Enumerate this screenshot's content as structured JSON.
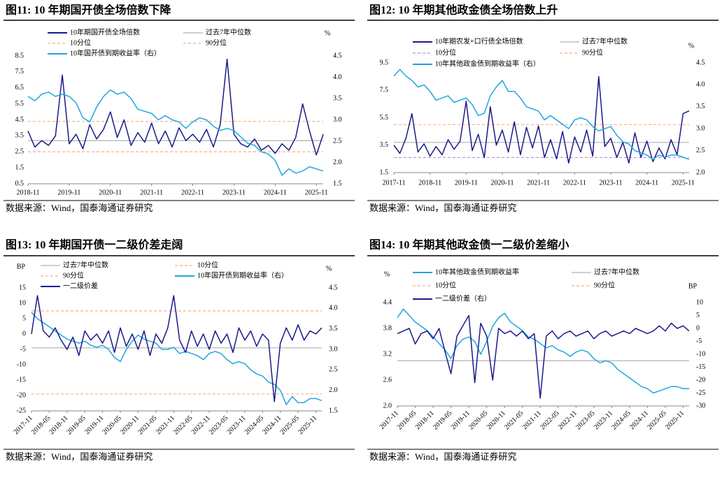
{
  "chart_data": [
    {
      "type": "line",
      "title": "图11:  10 年期国开债全场倍数下降",
      "source": "数据来源：Wind，国泰海通证券研究",
      "y2_unit": "%",
      "categories": [
        "2018-11",
        null,
        null,
        null,
        null,
        null,
        "2019-11",
        null,
        null,
        null,
        null,
        null,
        "2020-11",
        null,
        null,
        null,
        null,
        null,
        "2021-11",
        null,
        null,
        null,
        null,
        null,
        "2022-11",
        null,
        null,
        null,
        null,
        null,
        "2023-11",
        null,
        null,
        null,
        null,
        null,
        "2024-11",
        null,
        null,
        null,
        null,
        null,
        "2025-11",
        null
      ],
      "ylim": [
        0.5,
        8.5
      ],
      "yticks": [
        0.5,
        1.5,
        2.5,
        3.5,
        4.5,
        5.5,
        6.5,
        7.5,
        8.5
      ],
      "y2lim": [
        1.5,
        4.5
      ],
      "y2ticks": [
        1.5,
        {
          "value": 2,
          "label": "2.0"
        },
        2.5,
        {
          "value": 3,
          "label": "3.0"
        },
        3.5,
        {
          "value": 4,
          "label": "4.0"
        },
        4.5
      ],
      "series": [
        {
          "name": "10年期国开债全场倍数",
          "color": "#1b1b8a",
          "values": [
            3.8,
            2.8,
            3.2,
            2.9,
            3.5,
            7.3,
            3.0,
            3.6,
            2.7,
            4.2,
            3.3,
            3.9,
            5.0,
            3.4,
            4.5,
            2.9,
            3.7,
            3.1,
            4.3,
            3.0,
            3.8,
            2.8,
            4.0,
            3.2,
            3.6,
            3.1,
            3.9,
            2.8,
            4.2,
            8.3,
            3.6,
            3.0,
            2.8,
            3.3,
            2.6,
            2.9,
            2.4,
            3.0,
            2.6,
            3.4,
            5.5,
            3.8,
            2.3,
            3.6
          ]
        },
        {
          "name": "过去7年中位数",
          "color": "#b0b0b0",
          "level": 3.2
        },
        {
          "name": "10分位",
          "color": "#f4b183",
          "level": 2.5,
          "style": "dashed"
        },
        {
          "name": "90分位",
          "color": "#f4b183",
          "level": 4.4,
          "style": "dashed"
        },
        {
          "name": "10年国开债到期收益率（右）",
          "color": "#21a5e0",
          "axis": "y2",
          "values": [
            3.55,
            3.45,
            3.6,
            3.65,
            3.55,
            3.6,
            3.55,
            3.4,
            3.05,
            2.95,
            3.3,
            3.55,
            3.7,
            3.6,
            3.65,
            3.5,
            3.25,
            3.2,
            3.15,
            3.0,
            3.1,
            3.0,
            2.95,
            2.8,
            2.95,
            3.05,
            3.0,
            2.85,
            2.75,
            2.8,
            2.75,
            2.6,
            2.45,
            2.4,
            2.25,
            2.2,
            2.05,
            1.7,
            1.85,
            1.75,
            1.8,
            1.9,
            1.85,
            1.8
          ]
        }
      ]
    },
    {
      "type": "line",
      "title": "图12:  10 年期其他政金债全场倍数上升",
      "source": "数据来源：Wind，国泰海通证券研究",
      "y2_unit": "%",
      "categories": [
        "2017-11",
        null,
        null,
        null,
        null,
        null,
        "2018-11",
        null,
        null,
        null,
        null,
        null,
        "2019-11",
        null,
        null,
        null,
        null,
        null,
        "2020-11",
        null,
        null,
        null,
        null,
        null,
        "2021-11",
        null,
        null,
        null,
        null,
        null,
        "2022-11",
        null,
        null,
        null,
        null,
        null,
        "2023-11",
        null,
        null,
        null,
        null,
        null,
        "2024-11",
        null,
        null,
        null,
        null,
        null,
        "2025-11",
        null
      ],
      "ylim": [
        1.5,
        9.5
      ],
      "yticks": [
        1.5,
        3.5,
        5.5,
        7.5,
        9.5
      ],
      "y2lim": [
        2,
        4.5
      ],
      "y2ticks": [
        {
          "value": 2,
          "label": "2.0"
        },
        2.5,
        {
          "value": 3,
          "label": "3.0"
        },
        3.5,
        {
          "value": 4,
          "label": "4.0"
        },
        4.5
      ],
      "series": [
        {
          "name": "10年期农发+口行债全场倍数",
          "color": "#1b1b8a",
          "values": [
            3.5,
            2.9,
            4.0,
            5.8,
            3.0,
            3.6,
            2.7,
            3.4,
            2.8,
            3.9,
            3.2,
            3.8,
            6.7,
            3.1,
            4.3,
            2.6,
            6.3,
            3.5,
            4.6,
            3.0,
            5.2,
            2.8,
            4.8,
            3.3,
            4.9,
            2.6,
            3.9,
            2.5,
            4.5,
            2.2,
            4.1,
            3.0,
            4.6,
            2.7,
            8.5,
            3.4,
            4.0,
            2.6,
            3.7,
            2.2,
            4.4,
            2.6,
            3.8,
            2.3,
            3.3,
            2.5,
            3.9,
            2.8,
            5.8,
            6.0
          ]
        },
        {
          "name": "过去7年中位数",
          "color": "#b0b0b0",
          "level": 3.7
        },
        {
          "name": "10分位",
          "color": "#b38fd6",
          "level": 2.6,
          "style": "dashed"
        },
        {
          "name": "90分位",
          "color": "#f4b183",
          "level": 5.0,
          "style": "dashed"
        },
        {
          "name": "10年其他政金债到期收益率（右）",
          "color": "#21a5e0",
          "axis": "y2",
          "values": [
            4.2,
            4.35,
            4.2,
            4.1,
            3.95,
            4.0,
            3.85,
            3.65,
            3.7,
            3.75,
            3.6,
            3.65,
            3.7,
            3.55,
            3.3,
            3.35,
            3.75,
            3.95,
            4.1,
            3.85,
            3.85,
            3.7,
            3.5,
            3.45,
            3.4,
            3.2,
            3.3,
            3.2,
            3.1,
            3.0,
            3.2,
            3.25,
            3.2,
            3.05,
            2.95,
            3.0,
            3.05,
            2.85,
            2.7,
            2.65,
            2.5,
            2.45,
            2.4,
            2.3,
            2.4,
            2.35,
            2.4,
            2.4,
            2.35,
            2.3
          ]
        }
      ]
    },
    {
      "type": "line",
      "title": "图13:  10 年期国开债一二级价差走阔",
      "source": "数据来源：Wind，国泰海通证券研究",
      "y_unit": "BP",
      "y2_unit": "%",
      "categories": [
        "2017-11",
        null,
        null,
        "2018-05",
        null,
        null,
        "2018-11",
        null,
        null,
        "2019-05",
        null,
        null,
        "2019-11",
        null,
        null,
        "2020-05",
        null,
        null,
        "2020-11",
        null,
        null,
        "2021-05",
        null,
        null,
        "2021-11",
        null,
        null,
        "2022-05",
        null,
        null,
        "2022-11",
        null,
        null,
        "2023-05",
        null,
        null,
        "2023-11",
        null,
        null,
        "2024-05",
        null,
        null,
        "2024-11",
        null,
        null,
        "2025-05",
        null,
        null,
        "2025-11",
        null
      ],
      "ylim": [
        -25,
        15
      ],
      "yticks": [
        -25,
        -20,
        -15,
        -10,
        -5,
        0,
        5,
        10,
        15
      ],
      "y2lim": [
        1.5,
        4.5
      ],
      "y2ticks": [
        1.5,
        {
          "value": 2,
          "label": "2.0"
        },
        2.5,
        {
          "value": 3,
          "label": "3.0"
        },
        3.5,
        {
          "value": 4,
          "label": "4.0"
        },
        4.5
      ],
      "series": [
        {
          "name": "过去7年中位数",
          "color": "#b0b0b0",
          "level": -4.5
        },
        {
          "name": "10分位",
          "color": "#f4b183",
          "level": -19.5,
          "style": "dashed"
        },
        {
          "name": "90分位",
          "color": "#f4b183",
          "level": 7.5,
          "style": "dashed"
        },
        {
          "name": "10年国开债到期收益率（右）",
          "color": "#21a5e0",
          "axis": "y2",
          "values": [
            3.9,
            3.75,
            3.65,
            3.55,
            3.45,
            3.35,
            3.25,
            3.2,
            3.15,
            3.2,
            3.1,
            3.05,
            3.1,
            3.0,
            2.8,
            2.7,
            3.0,
            3.2,
            3.35,
            3.25,
            3.2,
            3.15,
            3.0,
            3.0,
            3.05,
            2.9,
            2.95,
            2.9,
            2.85,
            2.75,
            2.9,
            2.95,
            2.9,
            2.75,
            2.65,
            2.7,
            2.65,
            2.5,
            2.4,
            2.35,
            2.2,
            2.15,
            2.0,
            1.65,
            1.85,
            1.7,
            1.7,
            1.8,
            1.8,
            1.75
          ]
        },
        {
          "name": "一二级价差",
          "color": "#1b1b8a",
          "values": [
            0,
            12.5,
            1,
            -1,
            2,
            -2,
            -5,
            -1,
            -7,
            1,
            -2,
            0,
            -3,
            1,
            -6,
            2,
            -4,
            0,
            -5,
            1,
            -7,
            0,
            -3,
            2,
            12.5,
            -2,
            -6,
            1,
            -4,
            0,
            -5,
            1,
            -3,
            0,
            -6,
            2,
            -2,
            1,
            -4,
            0,
            -2,
            -22,
            -3,
            2,
            -2,
            3,
            -2,
            1,
            0,
            2
          ]
        }
      ]
    },
    {
      "type": "line",
      "title": "图14:  10 年期其他政金债一二级价差缩小",
      "source": "数据来源：Wind，国泰海通证券研究",
      "y_unit": "%",
      "y2_unit": "BP",
      "categories": [
        "2017-11",
        null,
        null,
        "2018-05",
        null,
        null,
        "2018-11",
        null,
        null,
        "2019-05",
        null,
        null,
        "2019-11",
        null,
        null,
        "2020-05",
        null,
        null,
        "2020-11",
        null,
        null,
        "2021-05",
        null,
        null,
        "2021-11",
        null,
        null,
        "2022-05",
        null,
        null,
        "2022-11",
        null,
        null,
        "2023-05",
        null,
        null,
        "2023-11",
        null,
        null,
        "2024-05",
        null,
        null,
        "2024-11",
        null,
        null,
        "2025-05",
        null,
        null,
        "2025-11",
        null
      ],
      "ylim": [
        2,
        4.4
      ],
      "yticks": [
        {
          "value": 2,
          "label": "2.0"
        },
        2.6,
        3.2,
        3.8,
        4.4
      ],
      "y2lim": [
        -30,
        10
      ],
      "y2ticks": [
        -30,
        -25,
        -20,
        -15,
        -10,
        -5,
        0,
        5,
        10
      ],
      "series": [
        {
          "name": "10年其他政金债到期收益率",
          "color": "#21a5e0",
          "values": [
            4.05,
            4.25,
            4.1,
            3.95,
            3.85,
            3.75,
            3.6,
            3.45,
            3.3,
            3.1,
            3.4,
            3.55,
            3.6,
            3.5,
            3.2,
            3.5,
            3.85,
            4.05,
            4.15,
            3.95,
            3.85,
            3.75,
            3.6,
            3.55,
            3.45,
            3.35,
            3.4,
            3.3,
            3.25,
            3.15,
            3.25,
            3.3,
            3.25,
            3.1,
            3.0,
            3.05,
            3.0,
            2.85,
            2.75,
            2.65,
            2.55,
            2.45,
            2.4,
            2.3,
            2.35,
            2.4,
            2.45,
            2.45,
            2.4,
            2.4
          ]
        },
        {
          "name": "过去7年中位数",
          "color": "#b0b0b0",
          "axis": "y2",
          "level": -12.5
        },
        {
          "name": "10分位",
          "color": "#f4b183",
          "style": "dashed"
        },
        {
          "name": "90分位",
          "color": "#f4b183",
          "style": "dashed"
        },
        {
          "name": "一二级价差（右）",
          "color": "#1b1b8a",
          "axis": "y2",
          "values": [
            -2,
            -1,
            0,
            -6,
            -2,
            -1,
            -4,
            0,
            -9,
            -17.5,
            -3,
            1,
            5,
            -21,
            2,
            -3,
            -20,
            0,
            -2,
            -1,
            -3,
            -1,
            -4,
            -2,
            -27,
            -3,
            -1,
            -4,
            -2,
            -1,
            -3,
            -2,
            -1,
            -4,
            -2,
            -1,
            -3,
            -2,
            -1,
            -2,
            0,
            -1,
            -2,
            -1,
            1,
            -1,
            2,
            0,
            1,
            -1
          ]
        }
      ]
    }
  ]
}
